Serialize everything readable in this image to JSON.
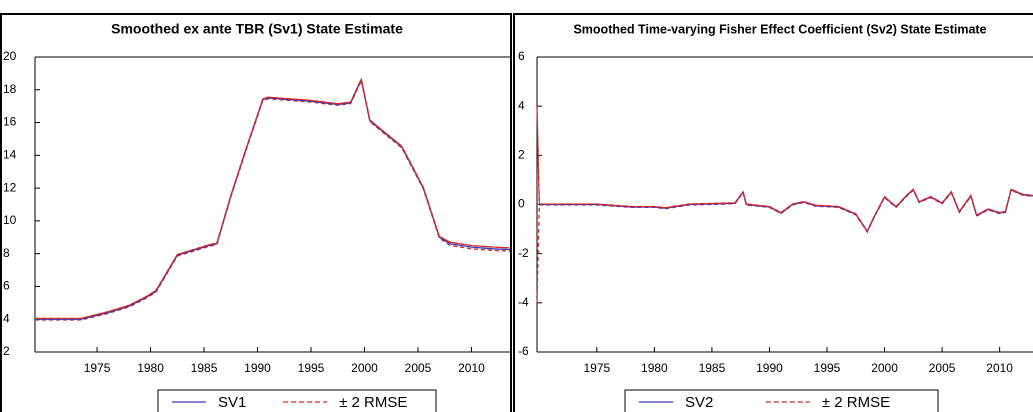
{
  "chart_data": [
    {
      "type": "line",
      "title": "Smoothed ex ante TBR (Sv1) State Estimate",
      "x": [
        1969.2,
        1971,
        1973.5,
        1976,
        1978,
        1979.5,
        1980.5,
        1982.5,
        1984,
        1985.5,
        1986.2,
        1987.5,
        1989,
        1990.5,
        1991,
        1995,
        1997.5,
        1998.7,
        1999.7,
        2000.5,
        2003.5,
        2005.5,
        2007,
        2008,
        2010,
        2012,
        2013.6
      ],
      "series": [
        {
          "name": "SV1",
          "color": "#3a3ab4",
          "values": [
            4.0,
            4.0,
            4.0,
            4.4,
            4.8,
            5.3,
            5.7,
            7.9,
            8.2,
            8.5,
            8.6,
            11.5,
            14.5,
            17.4,
            17.5,
            17.3,
            17.1,
            17.2,
            18.6,
            16.1,
            14.5,
            12.0,
            9.0,
            8.6,
            8.4,
            8.3,
            8.25
          ]
        },
        {
          "name": "± 2 RMSE",
          "color": "#d42a2a",
          "values": [
            4.05,
            4.05,
            4.05,
            4.45,
            4.85,
            5.35,
            5.75,
            7.95,
            8.25,
            8.55,
            8.65,
            11.55,
            14.55,
            17.45,
            17.55,
            17.35,
            17.15,
            17.25,
            18.65,
            16.15,
            14.55,
            12.05,
            9.05,
            8.7,
            8.5,
            8.4,
            8.35
          ],
          "lower": [
            3.95,
            3.95,
            3.95,
            4.35,
            4.75,
            5.25,
            5.65,
            7.85,
            8.15,
            8.45,
            8.55,
            11.45,
            14.45,
            17.35,
            17.45,
            17.25,
            17.05,
            17.15,
            18.55,
            16.05,
            14.45,
            11.95,
            8.95,
            8.5,
            8.3,
            8.2,
            8.15
          ]
        }
      ],
      "xlim": [
        1969.2,
        2013.6
      ],
      "ylim": [
        2,
        20
      ],
      "xticks": [
        1975,
        1980,
        1985,
        1990,
        1995,
        2000,
        2005,
        2010
      ],
      "yticks": [
        2,
        4,
        6,
        8,
        10,
        12,
        14,
        16,
        18,
        20
      ]
    },
    {
      "type": "line",
      "title": "Smoothed Time-varying Fisher Effect Coefficient (Sv2) State Estimate",
      "x": [
        1969.8,
        1970.0,
        1975,
        1978,
        1980,
        1981,
        1983,
        1987,
        1987.7,
        1988,
        1990,
        1991,
        1992,
        1993,
        1994,
        1996,
        1997.5,
        1998.5,
        1999,
        2000,
        2001,
        2002,
        2002.5,
        2003,
        2004,
        2005,
        2005.8,
        2006.5,
        2007.5,
        2008,
        2009,
        2010,
        2010.5,
        2011,
        2012,
        2012.9
      ],
      "series": [
        {
          "name": "SV2",
          "color": "#3a3ab4",
          "values": [
            0,
            0,
            0,
            -0.1,
            -0.1,
            -0.15,
            0,
            0.05,
            0.5,
            0,
            -0.1,
            -0.35,
            0,
            0.1,
            -0.05,
            -0.1,
            -0.4,
            -1.1,
            -0.6,
            0.3,
            -0.1,
            0.4,
            0.6,
            0.1,
            0.3,
            0.05,
            0.5,
            -0.3,
            0.35,
            -0.45,
            -0.2,
            -0.35,
            -0.3,
            0.6,
            0.4,
            0.35
          ]
        },
        {
          "name": "± 2 RMSE",
          "color": "#d42a2a",
          "values": [
            4,
            0.02,
            0.02,
            -0.08,
            -0.08,
            -0.13,
            0.02,
            0.07,
            0.52,
            0.02,
            -0.08,
            -0.33,
            0.02,
            0.12,
            -0.03,
            -0.08,
            -0.38,
            -1.08,
            -0.58,
            0.32,
            -0.08,
            0.42,
            0.62,
            0.12,
            0.32,
            0.07,
            0.52,
            -0.28,
            0.37,
            -0.43,
            -0.18,
            -0.33,
            -0.28,
            0.62,
            0.42,
            0.37
          ],
          "lower": [
            -4,
            -0.02,
            -0.02,
            -0.12,
            -0.12,
            -0.17,
            -0.02,
            0.03,
            0.48,
            -0.02,
            -0.12,
            -0.37,
            -0.02,
            0.08,
            -0.07,
            -0.12,
            -0.42,
            -1.12,
            -0.62,
            0.28,
            -0.12,
            0.38,
            0.58,
            0.08,
            0.28,
            0.03,
            0.48,
            -0.32,
            0.33,
            -0.47,
            -0.22,
            -0.37,
            -0.32,
            0.58,
            0.38,
            0.33
          ]
        }
      ],
      "xlim": [
        1969.8,
        2012.9
      ],
      "ylim": [
        -6,
        6
      ],
      "xticks": [
        1975,
        1980,
        1985,
        1990,
        1995,
        2000,
        2005,
        2010
      ],
      "yticks": [
        -6,
        -4,
        -2,
        0,
        2,
        4,
        6
      ]
    }
  ]
}
